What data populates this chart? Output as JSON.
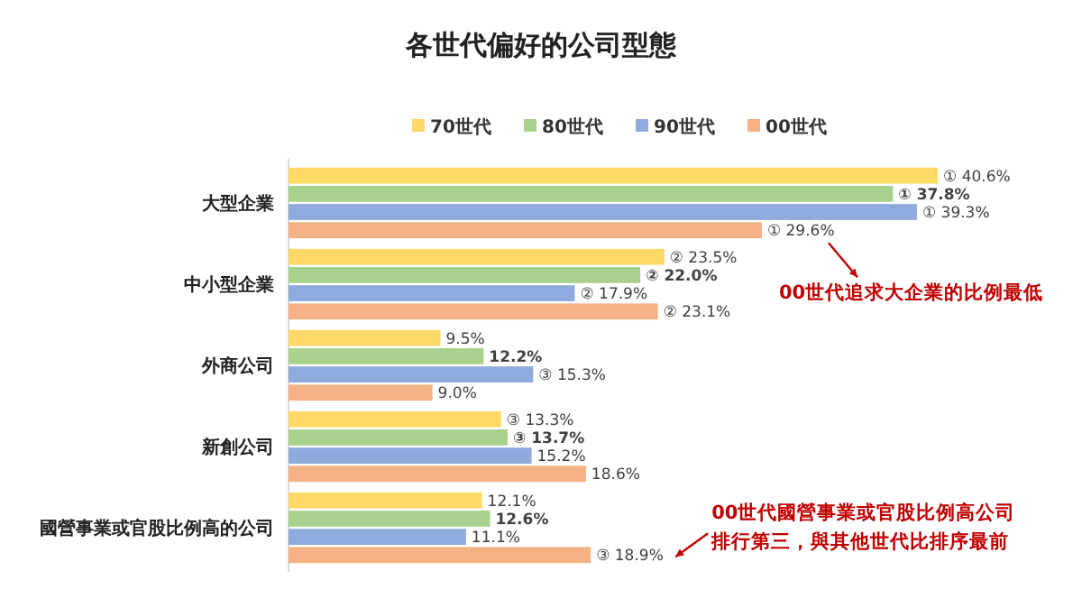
{
  "chart_data": {
    "type": "bar",
    "orientation": "horizontal",
    "title": "各世代偏好的公司型態",
    "categories": [
      "大型企業",
      "中小型企業",
      "外商公司",
      "新創公司",
      "國營事業或官股比例高的公司"
    ],
    "series": [
      {
        "name": "70世代",
        "color": "#ffd966",
        "values": [
          40.6,
          23.5,
          9.5,
          13.3,
          12.1
        ],
        "value_labels": [
          "① 40.6%",
          "② 23.5%",
          "9.5%",
          "③ 13.3%",
          "12.1%"
        ]
      },
      {
        "name": "80世代",
        "color": "#a9d18e",
        "values": [
          37.8,
          22.0,
          12.2,
          13.7,
          12.6
        ],
        "value_labels": [
          "① 37.8%",
          "② 22.0%",
          "12.2%",
          "③ 13.7%",
          "12.6%"
        ]
      },
      {
        "name": "90世代",
        "color": "#8faadc",
        "values": [
          39.3,
          17.9,
          15.3,
          15.2,
          11.1
        ],
        "value_labels": [
          "① 39.3%",
          "② 17.9%",
          "③ 15.3%",
          "15.2%",
          "11.1%"
        ]
      },
      {
        "name": "00世代",
        "color": "#f4b183",
        "values": [
          29.6,
          23.1,
          9.0,
          18.6,
          18.9
        ],
        "value_labels": [
          "① 29.6%",
          "② 23.1%",
          "9.0%",
          "18.6%",
          "③ 18.9%"
        ]
      }
    ],
    "legend": "top",
    "annotations": [
      "00世代追求大企業的比例最低",
      "00世代國營事業或官股比例高公司排行第三，與其他世代比排序最前"
    ]
  }
}
